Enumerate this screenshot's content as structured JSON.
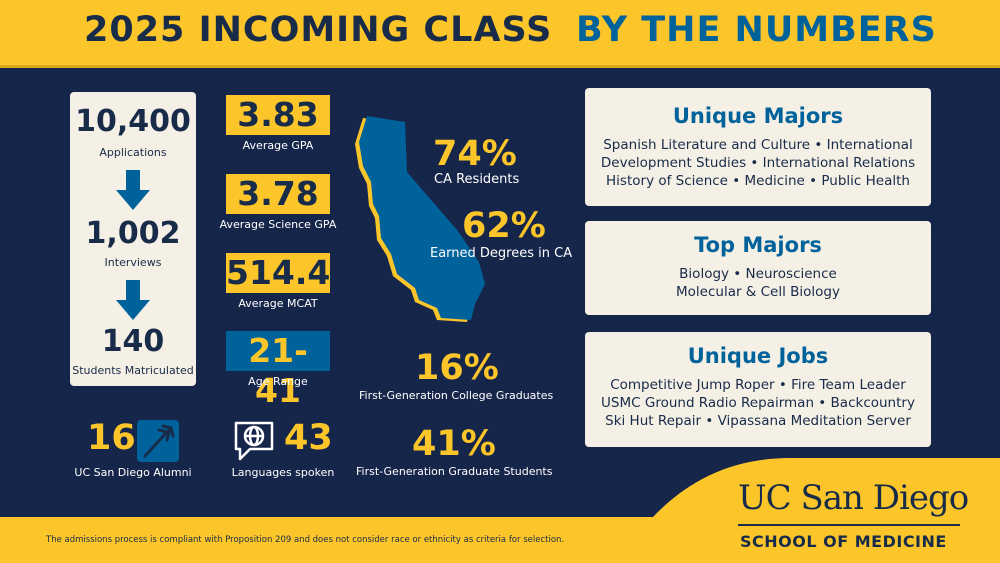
{
  "header": {
    "title_part1": "2025 INCOMING CLASS",
    "title_part2": "BY THE NUMBERS"
  },
  "funnel": {
    "applications": {
      "value": "10,400",
      "label": "Applications"
    },
    "interviews": {
      "value": "1,002",
      "label": "Interviews"
    },
    "matriculated": {
      "value": "140",
      "label": "Students Matriculated"
    }
  },
  "stats": {
    "gpa": {
      "value": "3.83",
      "label": "Average GPA"
    },
    "science_gpa": {
      "value": "3.78",
      "label": "Average Science GPA"
    },
    "mcat": {
      "value": "514.4",
      "label": "Average MCAT"
    },
    "age": {
      "value": "21-41",
      "label": "Age Range"
    }
  },
  "alumni": {
    "value": "16",
    "label": "UC San Diego Alumni",
    "icon": "trident-icon"
  },
  "languages": {
    "value": "43",
    "label": "Languages spoken",
    "icon": "speech-globe-icon"
  },
  "california": {
    "residents": {
      "value": "74%",
      "label": "CA Residents"
    },
    "degrees": {
      "value": "62%",
      "label": "Earned Degrees in CA"
    }
  },
  "first_gen": {
    "college": {
      "value": "16%",
      "label": "First-Generation College Graduates"
    },
    "graduate": {
      "value": "41%",
      "label": "First-Generation Graduate Students"
    }
  },
  "panels": {
    "unique_majors": {
      "title": "Unique Majors",
      "lines": [
        "Spanish Literature and Culture • International",
        "Development Studies • International Relations",
        "History of Science • Medicine • Public Health"
      ]
    },
    "top_majors": {
      "title": "Top Majors",
      "lines": [
        "Biology • Neuroscience",
        "Molecular & Cell Biology"
      ]
    },
    "unique_jobs": {
      "title": "Unique Jobs",
      "lines": [
        "Competitive Jump Roper • Fire Team Leader",
        "USMC Ground Radio Repairman • Backcountry",
        "Ski Hut Repair • Vipassana Meditation Server"
      ]
    }
  },
  "footer": {
    "disclaimer": "The admissions process is compliant with Proposition 209 and does not consider race or ethnicity as criteria for selection.",
    "logo_name": "UC San Diego",
    "logo_sub": "SCHOOL OF MEDICINE"
  },
  "colors": {
    "navy": "#16264a",
    "gold": "#fcc62a",
    "blue": "#00629b",
    "cream": "#f5f0e6"
  }
}
